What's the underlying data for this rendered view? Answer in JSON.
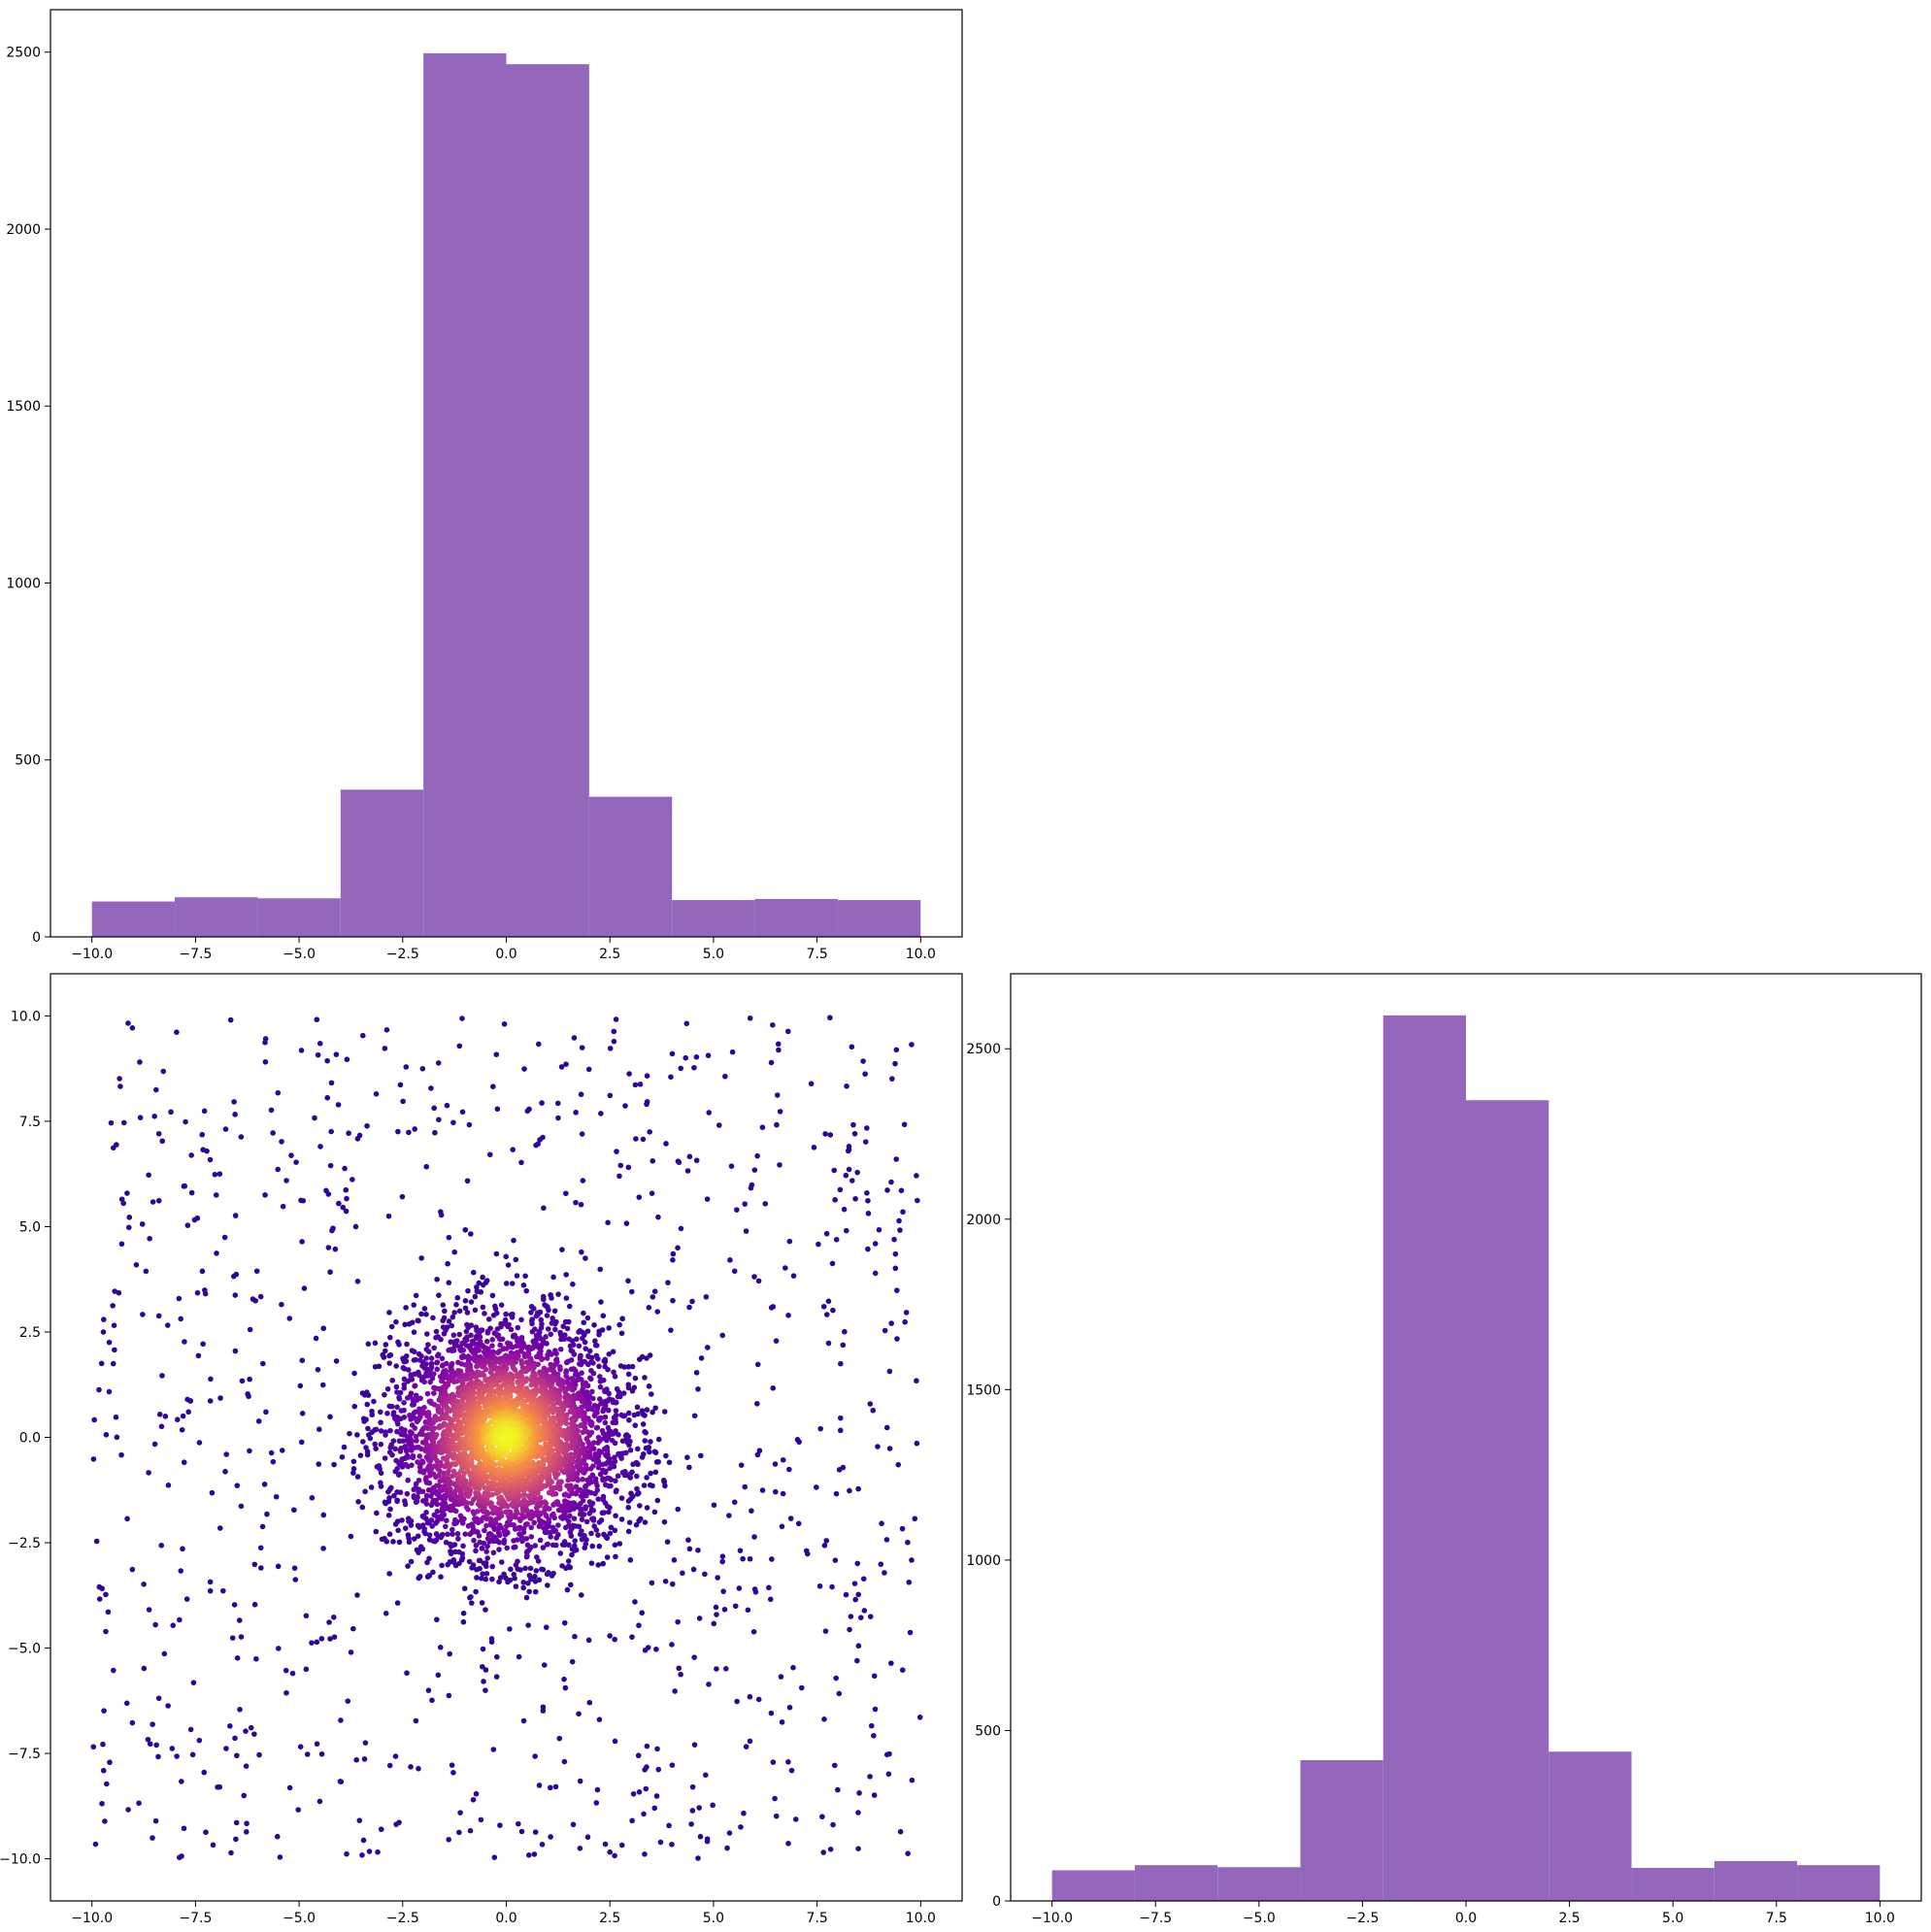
{
  "colors": {
    "bar": "#9467bd",
    "scatter_colormap": "plasma",
    "background": "#ffffff",
    "axes": "#000000"
  },
  "chart_data": [
    {
      "id": "top-histogram",
      "type": "bar",
      "title": "",
      "xlabel": "",
      "ylabel": "",
      "bin_edges": [
        -10,
        -8,
        -6,
        -4,
        -2,
        0,
        2,
        4,
        6,
        8,
        10
      ],
      "values": [
        100,
        112,
        109,
        416,
        2497,
        2466,
        396,
        104,
        107,
        104
      ],
      "xlim": [
        -11,
        11
      ],
      "ylim": [
        0,
        2620
      ],
      "xticks": [
        -10.0,
        -7.5,
        -5.0,
        -2.5,
        0.0,
        2.5,
        5.0,
        7.5,
        10.0
      ],
      "xtick_labels": [
        "−10.0",
        "−7.5",
        "−5.0",
        "−2.5",
        "0.0",
        "2.5",
        "5.0",
        "7.5",
        "10.0"
      ],
      "yticks": [
        0,
        500,
        1000,
        1500,
        2000,
        2500
      ],
      "ytick_labels": [
        "0",
        "500",
        "1000",
        "1500",
        "2000",
        "2500"
      ],
      "grid": false,
      "legend": "none"
    },
    {
      "id": "scatter",
      "type": "scatter",
      "title": "",
      "xlabel": "",
      "ylabel": "",
      "description_of_data": "About 5000 points: a dense cluster normally distributed around (0, 0) within radius ~4, plus a sparse uniform scatter over [-10, 10] x [-10, 10]; point color by local density using the plasma colormap (dark purple sparse to yellow at the center).",
      "cluster_center": [
        0,
        0
      ],
      "cluster_radius": 4,
      "cluster_point_count": 4000,
      "uniform_point_count": 1000,
      "uniform_range": [
        -10,
        10
      ],
      "xlim": [
        -11,
        11
      ],
      "ylim": [
        -11,
        11
      ],
      "xticks": [
        -10.0,
        -7.5,
        -5.0,
        -2.5,
        0.0,
        2.5,
        5.0,
        7.5,
        10.0
      ],
      "xtick_labels": [
        "−10.0",
        "−7.5",
        "−5.0",
        "−2.5",
        "0.0",
        "2.5",
        "5.0",
        "7.5",
        "10.0"
      ],
      "yticks": [
        -10.0,
        -7.5,
        -5.0,
        -2.5,
        0.0,
        2.5,
        5.0,
        7.5,
        10.0
      ],
      "ytick_labels": [
        "−10.0",
        "−7.5",
        "−5.0",
        "−2.5",
        "0.0",
        "2.5",
        "5.0",
        "7.5",
        "10.0"
      ],
      "grid": false,
      "legend": "none"
    },
    {
      "id": "right-histogram",
      "type": "bar",
      "title": "",
      "xlabel": "",
      "ylabel": "",
      "bin_edges": [
        -10,
        -8,
        -6,
        -4,
        -2,
        0,
        2,
        4,
        6,
        8,
        10
      ],
      "values": [
        90,
        105,
        99,
        413,
        2598,
        2349,
        438,
        97,
        117,
        105
      ],
      "xlim": [
        -11,
        11
      ],
      "ylim": [
        0,
        2720
      ],
      "xticks": [
        -10.0,
        -7.5,
        -5.0,
        -2.5,
        0.0,
        2.5,
        5.0,
        7.5,
        10.0
      ],
      "xtick_labels": [
        "−10.0",
        "−7.5",
        "−5.0",
        "−2.5",
        "0.0",
        "2.5",
        "5.0",
        "7.5",
        "10.0"
      ],
      "yticks": [
        0,
        500,
        1000,
        1500,
        2000,
        2500
      ],
      "ytick_labels": [
        "0",
        "500",
        "1000",
        "1500",
        "2000",
        "2500"
      ],
      "grid": false,
      "legend": "none"
    }
  ]
}
